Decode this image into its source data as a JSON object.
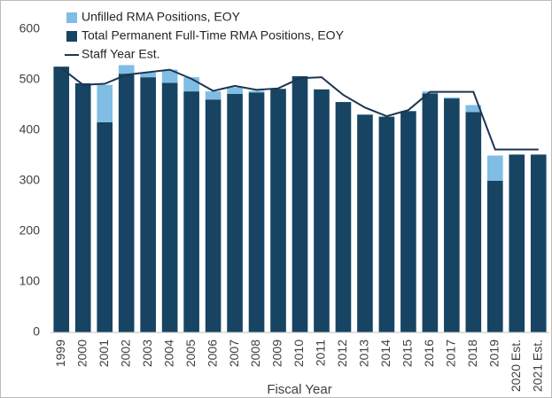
{
  "chart_data": {
    "type": "bar",
    "stacked": true,
    "xlabel": "Fiscal Year",
    "categories": [
      "1999",
      "2000",
      "2001",
      "2002",
      "2003",
      "2004",
      "2005",
      "2006",
      "2007",
      "2008",
      "2009",
      "2010",
      "2011",
      "2012",
      "2013",
      "2014",
      "2015",
      "2016",
      "2017",
      "2018",
      "2019",
      "2020 Est.",
      "2021 Est."
    ],
    "series": [
      {
        "name": "Unfilled RMA Positions, EOY",
        "type": "bar",
        "color": "#7fbde4",
        "values": [
          0,
          0,
          74,
          17,
          9,
          26,
          28,
          16,
          13,
          3,
          0,
          0,
          0,
          0,
          0,
          0,
          0,
          4,
          2,
          14,
          50,
          0,
          0
        ]
      },
      {
        "name": "Total Permanent Full-Time RMA Positions, EOY",
        "type": "bar",
        "color": "#174463",
        "values": [
          526,
          493,
          416,
          512,
          505,
          494,
          477,
          461,
          472,
          475,
          482,
          507,
          481,
          456,
          431,
          427,
          438,
          473,
          463,
          436,
          300,
          352,
          352
        ]
      },
      {
        "name": "Staff Year Est.",
        "type": "line",
        "color": "#1e3550",
        "values": [
          523,
          490,
          492,
          510,
          515,
          520,
          502,
          478,
          488,
          480,
          483,
          503,
          505,
          470,
          445,
          428,
          440,
          476,
          476,
          476,
          362,
          362,
          362
        ]
      }
    ],
    "ylim": [
      0,
      600
    ],
    "yticks": [
      0,
      100,
      200,
      300,
      400,
      500,
      600
    ],
    "grid": false,
    "legend": "top-left"
  }
}
